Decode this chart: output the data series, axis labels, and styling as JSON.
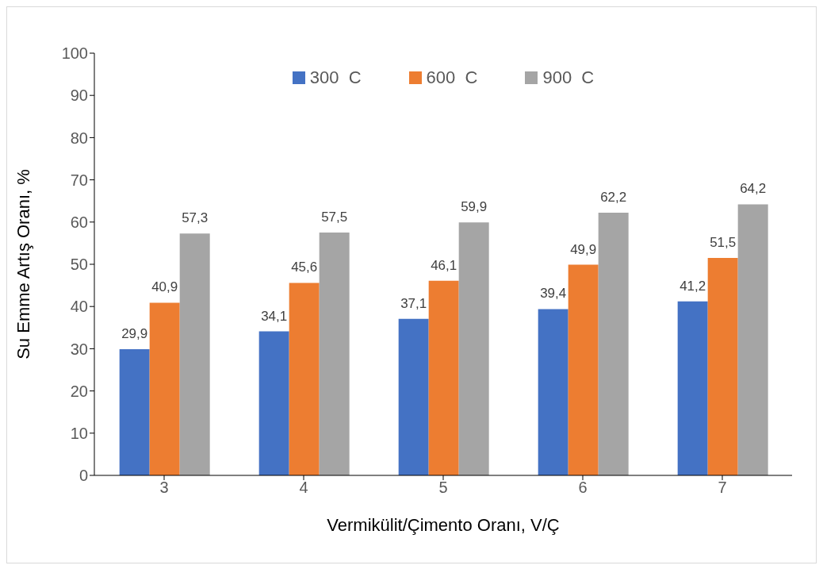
{
  "chart_data": {
    "type": "bar",
    "xlabel": "Vermikülit/Çimento Oranı, V/Ç",
    "ylabel": "Su Emme Artış Oranı, %",
    "categories": [
      "3",
      "4",
      "5",
      "6",
      "7"
    ],
    "series": [
      {
        "name": "300  C",
        "color": "#4472c4",
        "values": [
          29.9,
          34.1,
          37.1,
          39.4,
          41.2
        ],
        "value_labels": [
          "29,9",
          "34,1",
          "37,1",
          "39,4",
          "41,2"
        ]
      },
      {
        "name": "600  C",
        "color": "#ed7d31",
        "values": [
          40.9,
          45.6,
          46.1,
          49.9,
          51.5
        ],
        "value_labels": [
          "40,9",
          "45,6",
          "46,1",
          "49,9",
          "51,5"
        ]
      },
      {
        "name": "900  C",
        "color": "#a5a5a5",
        "values": [
          57.3,
          57.5,
          59.9,
          62.2,
          64.2
        ],
        "value_labels": [
          "57,3",
          "57,5",
          "59,9",
          "62,2",
          "64,2"
        ]
      }
    ],
    "ylim": [
      0,
      100
    ],
    "yticks": [
      0,
      10,
      20,
      30,
      40,
      50,
      60,
      70,
      80,
      90,
      100
    ],
    "legend": "top"
  }
}
